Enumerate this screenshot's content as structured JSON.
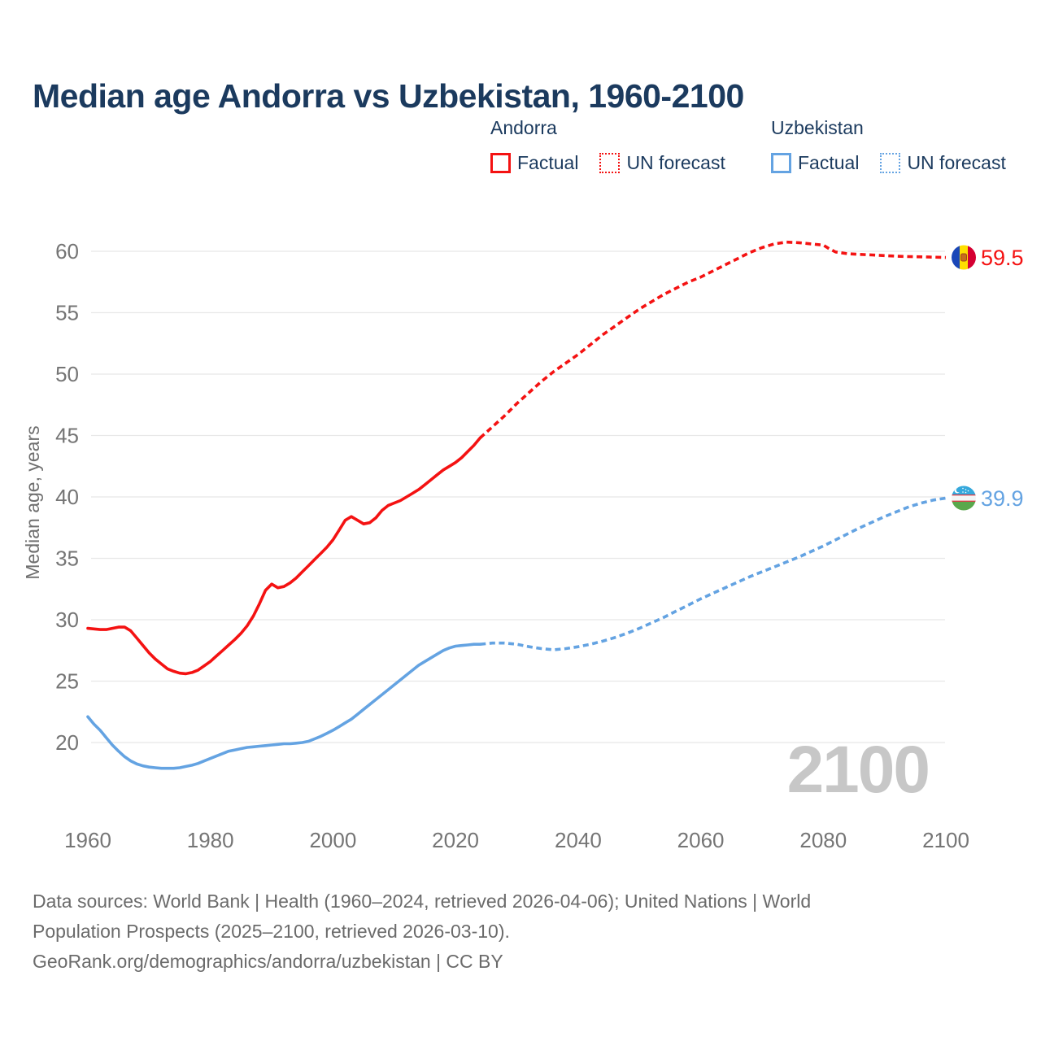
{
  "title": "Median age Andorra vs Uzbekistan, 1960-2100",
  "legend": {
    "andorra": {
      "label": "Andorra",
      "factual": "Factual",
      "forecast": "UN forecast"
    },
    "uzbekistan": {
      "label": "Uzbekistan",
      "factual": "Factual",
      "forecast": "UN forecast"
    }
  },
  "colors": {
    "andorra_line": "#f41212",
    "uzbekistan_line": "#64a3e2",
    "title_text": "#1b3a5e",
    "axis_text": "#757575",
    "gridline": "#e8e8e8",
    "watermark": "#c7c7c7",
    "footer_text": "#6b6b6b"
  },
  "footer": {
    "lines": [
      "Data sources: World Bank | Health (1960–2024, retrieved 2026-04-06); United Nations | World",
      "Population Prospects (2025–2100, retrieved 2026-03-10).",
      "GeoRank.org/demographics/andorra/uzbekistan | CC BY"
    ]
  },
  "chart_data": {
    "type": "line",
    "title": "Median age Andorra vs Uzbekistan, 1960-2100",
    "xlabel": "",
    "ylabel": "Median age, years",
    "x_ticks": [
      1960,
      1980,
      2000,
      2020,
      2040,
      2060,
      2080,
      2100
    ],
    "y_ticks": [
      20,
      25,
      30,
      35,
      40,
      45,
      50,
      55,
      60
    ],
    "xlim": [
      1960,
      2100
    ],
    "ylim": [
      17.5,
      62
    ],
    "grid": "horizontal-only",
    "legend_position": "top",
    "watermark": "2100",
    "series": [
      {
        "id": "andorra-factual",
        "name": "Andorra Factual",
        "country": "Andorra",
        "style": "solid",
        "color": "#f41212",
        "points": [
          [
            1960,
            29.3
          ],
          [
            1961,
            29.25
          ],
          [
            1962,
            29.2
          ],
          [
            1963,
            29.2
          ],
          [
            1964,
            29.3
          ],
          [
            1965,
            29.4
          ],
          [
            1966,
            29.4
          ],
          [
            1967,
            29.1
          ],
          [
            1968,
            28.5
          ],
          [
            1969,
            27.9
          ],
          [
            1970,
            27.3
          ],
          [
            1971,
            26.8
          ],
          [
            1972,
            26.4
          ],
          [
            1973,
            26.0
          ],
          [
            1974,
            25.8
          ],
          [
            1975,
            25.65
          ],
          [
            1976,
            25.6
          ],
          [
            1977,
            25.7
          ],
          [
            1978,
            25.9
          ],
          [
            1979,
            26.25
          ],
          [
            1980,
            26.6
          ],
          [
            1981,
            27.05
          ],
          [
            1982,
            27.5
          ],
          [
            1983,
            27.95
          ],
          [
            1984,
            28.4
          ],
          [
            1985,
            28.9
          ],
          [
            1986,
            29.5
          ],
          [
            1987,
            30.3
          ],
          [
            1988,
            31.3
          ],
          [
            1989,
            32.4
          ],
          [
            1990,
            32.9
          ],
          [
            1991,
            32.6
          ],
          [
            1992,
            32.7
          ],
          [
            1993,
            33.0
          ],
          [
            1994,
            33.4
          ],
          [
            1995,
            33.9
          ],
          [
            1996,
            34.4
          ],
          [
            1997,
            34.9
          ],
          [
            1998,
            35.4
          ],
          [
            1999,
            35.9
          ],
          [
            2000,
            36.5
          ],
          [
            2001,
            37.3
          ],
          [
            2002,
            38.1
          ],
          [
            2003,
            38.4
          ],
          [
            2004,
            38.1
          ],
          [
            2005,
            37.8
          ],
          [
            2006,
            37.9
          ],
          [
            2007,
            38.3
          ],
          [
            2008,
            38.9
          ],
          [
            2009,
            39.3
          ],
          [
            2010,
            39.5
          ],
          [
            2011,
            39.7
          ],
          [
            2012,
            40.0
          ],
          [
            2013,
            40.3
          ],
          [
            2014,
            40.6
          ],
          [
            2015,
            41.0
          ],
          [
            2016,
            41.4
          ],
          [
            2017,
            41.8
          ],
          [
            2018,
            42.2
          ],
          [
            2019,
            42.5
          ],
          [
            2020,
            42.8
          ],
          [
            2021,
            43.2
          ],
          [
            2022,
            43.7
          ],
          [
            2023,
            44.2
          ],
          [
            2024,
            44.8
          ]
        ]
      },
      {
        "id": "andorra-forecast",
        "name": "Andorra UN forecast",
        "country": "Andorra",
        "style": "dashed",
        "color": "#f41212",
        "points": [
          [
            2024,
            44.8
          ],
          [
            2026,
            45.7
          ],
          [
            2028,
            46.6
          ],
          [
            2030,
            47.6
          ],
          [
            2032,
            48.5
          ],
          [
            2034,
            49.4
          ],
          [
            2036,
            50.2
          ],
          [
            2038,
            50.9
          ],
          [
            2040,
            51.6
          ],
          [
            2042,
            52.4
          ],
          [
            2044,
            53.2
          ],
          [
            2046,
            53.9
          ],
          [
            2048,
            54.6
          ],
          [
            2050,
            55.3
          ],
          [
            2052,
            55.9
          ],
          [
            2054,
            56.5
          ],
          [
            2056,
            57.0
          ],
          [
            2058,
            57.5
          ],
          [
            2060,
            57.9
          ],
          [
            2062,
            58.4
          ],
          [
            2064,
            58.9
          ],
          [
            2066,
            59.4
          ],
          [
            2068,
            59.9
          ],
          [
            2070,
            60.3
          ],
          [
            2072,
            60.6
          ],
          [
            2074,
            60.75
          ],
          [
            2076,
            60.7
          ],
          [
            2078,
            60.6
          ],
          [
            2080,
            60.5
          ],
          [
            2081,
            60.2
          ],
          [
            2082,
            59.95
          ],
          [
            2084,
            59.8
          ],
          [
            2086,
            59.75
          ],
          [
            2088,
            59.7
          ],
          [
            2090,
            59.65
          ],
          [
            2092,
            59.6
          ],
          [
            2094,
            59.57
          ],
          [
            2096,
            59.55
          ],
          [
            2098,
            59.52
          ],
          [
            2100,
            59.5
          ]
        ]
      },
      {
        "id": "uzbekistan-factual",
        "name": "Uzbekistan Factual",
        "country": "Uzbekistan",
        "style": "solid",
        "color": "#64a3e2",
        "points": [
          [
            1960,
            22.1
          ],
          [
            1961,
            21.5
          ],
          [
            1962,
            21.0
          ],
          [
            1963,
            20.4
          ],
          [
            1964,
            19.8
          ],
          [
            1965,
            19.3
          ],
          [
            1966,
            18.85
          ],
          [
            1967,
            18.5
          ],
          [
            1968,
            18.25
          ],
          [
            1969,
            18.1
          ],
          [
            1970,
            18.0
          ],
          [
            1971,
            17.95
          ],
          [
            1972,
            17.9
          ],
          [
            1973,
            17.9
          ],
          [
            1974,
            17.9
          ],
          [
            1975,
            17.95
          ],
          [
            1976,
            18.05
          ],
          [
            1977,
            18.15
          ],
          [
            1978,
            18.3
          ],
          [
            1979,
            18.5
          ],
          [
            1980,
            18.7
          ],
          [
            1981,
            18.9
          ],
          [
            1982,
            19.1
          ],
          [
            1983,
            19.3
          ],
          [
            1984,
            19.4
          ],
          [
            1985,
            19.5
          ],
          [
            1986,
            19.6
          ],
          [
            1987,
            19.65
          ],
          [
            1988,
            19.7
          ],
          [
            1989,
            19.75
          ],
          [
            1990,
            19.8
          ],
          [
            1991,
            19.85
          ],
          [
            1992,
            19.9
          ],
          [
            1993,
            19.9
          ],
          [
            1994,
            19.95
          ],
          [
            1995,
            20.0
          ],
          [
            1996,
            20.1
          ],
          [
            1997,
            20.3
          ],
          [
            1998,
            20.5
          ],
          [
            1999,
            20.75
          ],
          [
            2000,
            21.0
          ],
          [
            2001,
            21.3
          ],
          [
            2002,
            21.6
          ],
          [
            2003,
            21.9
          ],
          [
            2004,
            22.3
          ],
          [
            2005,
            22.7
          ],
          [
            2006,
            23.1
          ],
          [
            2007,
            23.5
          ],
          [
            2008,
            23.9
          ],
          [
            2009,
            24.3
          ],
          [
            2010,
            24.7
          ],
          [
            2011,
            25.1
          ],
          [
            2012,
            25.5
          ],
          [
            2013,
            25.9
          ],
          [
            2014,
            26.3
          ],
          [
            2015,
            26.6
          ],
          [
            2016,
            26.9
          ],
          [
            2017,
            27.2
          ],
          [
            2018,
            27.5
          ],
          [
            2019,
            27.7
          ],
          [
            2020,
            27.85
          ],
          [
            2021,
            27.9
          ],
          [
            2022,
            27.95
          ],
          [
            2023,
            28.0
          ],
          [
            2024,
            28.0
          ]
        ]
      },
      {
        "id": "uzbekistan-forecast",
        "name": "Uzbekistan UN forecast",
        "country": "Uzbekistan",
        "style": "dashed",
        "color": "#64a3e2",
        "points": [
          [
            2024,
            28.0
          ],
          [
            2026,
            28.1
          ],
          [
            2028,
            28.1
          ],
          [
            2030,
            28.0
          ],
          [
            2032,
            27.8
          ],
          [
            2034,
            27.65
          ],
          [
            2036,
            27.55
          ],
          [
            2038,
            27.65
          ],
          [
            2040,
            27.8
          ],
          [
            2042,
            28.0
          ],
          [
            2044,
            28.25
          ],
          [
            2046,
            28.55
          ],
          [
            2048,
            28.9
          ],
          [
            2050,
            29.3
          ],
          [
            2052,
            29.75
          ],
          [
            2054,
            30.2
          ],
          [
            2056,
            30.7
          ],
          [
            2058,
            31.2
          ],
          [
            2060,
            31.7
          ],
          [
            2062,
            32.15
          ],
          [
            2064,
            32.6
          ],
          [
            2066,
            33.05
          ],
          [
            2068,
            33.5
          ],
          [
            2070,
            33.9
          ],
          [
            2072,
            34.3
          ],
          [
            2074,
            34.7
          ],
          [
            2076,
            35.1
          ],
          [
            2078,
            35.55
          ],
          [
            2080,
            36.0
          ],
          [
            2082,
            36.5
          ],
          [
            2084,
            37.0
          ],
          [
            2086,
            37.5
          ],
          [
            2088,
            37.95
          ],
          [
            2090,
            38.4
          ],
          [
            2092,
            38.8
          ],
          [
            2094,
            39.2
          ],
          [
            2096,
            39.5
          ],
          [
            2098,
            39.75
          ],
          [
            2100,
            39.9
          ]
        ]
      }
    ],
    "end_labels": [
      {
        "country": "Andorra",
        "value": "59.5",
        "color": "#f41212",
        "flag": "andorra-flag"
      },
      {
        "country": "Uzbekistan",
        "value": "39.9",
        "color": "#64a3e2",
        "flag": "uzbekistan-flag"
      }
    ]
  }
}
